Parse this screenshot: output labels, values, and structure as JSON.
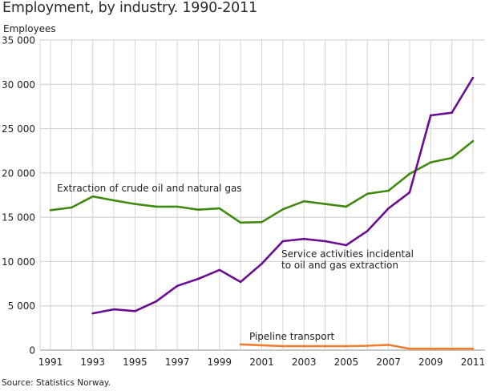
{
  "title": "Employment, by industry. 1990-2011",
  "source": "Source: Statistics Norway.",
  "chart_data": {
    "type": "line",
    "title": "Employment, by industry. 1990-2011",
    "xlabel": "",
    "ylabel": "Employees",
    "ylim": [
      0,
      35000
    ],
    "xlim": [
      1991,
      2011
    ],
    "grid": true,
    "x": [
      1991,
      1992,
      1993,
      1994,
      1995,
      1996,
      1997,
      1998,
      1999,
      2000,
      2001,
      2002,
      2003,
      2004,
      2005,
      2006,
      2007,
      2008,
      2009,
      2010,
      2011
    ],
    "x_tick_labels": [
      "1991",
      "1993",
      "1995",
      "1997",
      "1999",
      "2001",
      "2003",
      "2005",
      "2007",
      "2009",
      "2011"
    ],
    "y_ticks": [
      0,
      5000,
      10000,
      15000,
      20000,
      25000,
      30000,
      35000
    ],
    "y_tick_labels": [
      "0",
      "5 000",
      "10 000",
      "15 000",
      "20 000",
      "25 000",
      "30 000",
      "35 000"
    ],
    "series": [
      {
        "name": "Extraction of crude oil and natural gas",
        "color": "#3f8a0f",
        "values": [
          15800,
          16100,
          17350,
          16900,
          16500,
          16200,
          16200,
          15850,
          16000,
          14400,
          14450,
          15900,
          16800,
          16500,
          16200,
          17650,
          18000,
          19900,
          21200,
          21700,
          23600
        ],
        "label_lines": [
          "Extraction of crude oil and natural gas"
        ]
      },
      {
        "name": "Service activities incidental to oil and gas extraction",
        "color": "#6a0d91",
        "values": [
          null,
          null,
          4150,
          4600,
          4400,
          5500,
          7250,
          8050,
          9050,
          7700,
          9750,
          12300,
          12550,
          12300,
          11850,
          13450,
          16000,
          17800,
          26500,
          26800,
          30750
        ],
        "label_lines": [
          "Service activities incidental",
          "to oil and gas extraction"
        ]
      },
      {
        "name": "Pipeline transport",
        "color": "#ed7d31",
        "values": [
          null,
          null,
          null,
          null,
          null,
          null,
          null,
          null,
          null,
          650,
          550,
          450,
          450,
          450,
          450,
          500,
          600,
          150,
          150,
          150,
          150
        ],
        "label_lines": [
          "Pipeline transport"
        ]
      }
    ]
  }
}
